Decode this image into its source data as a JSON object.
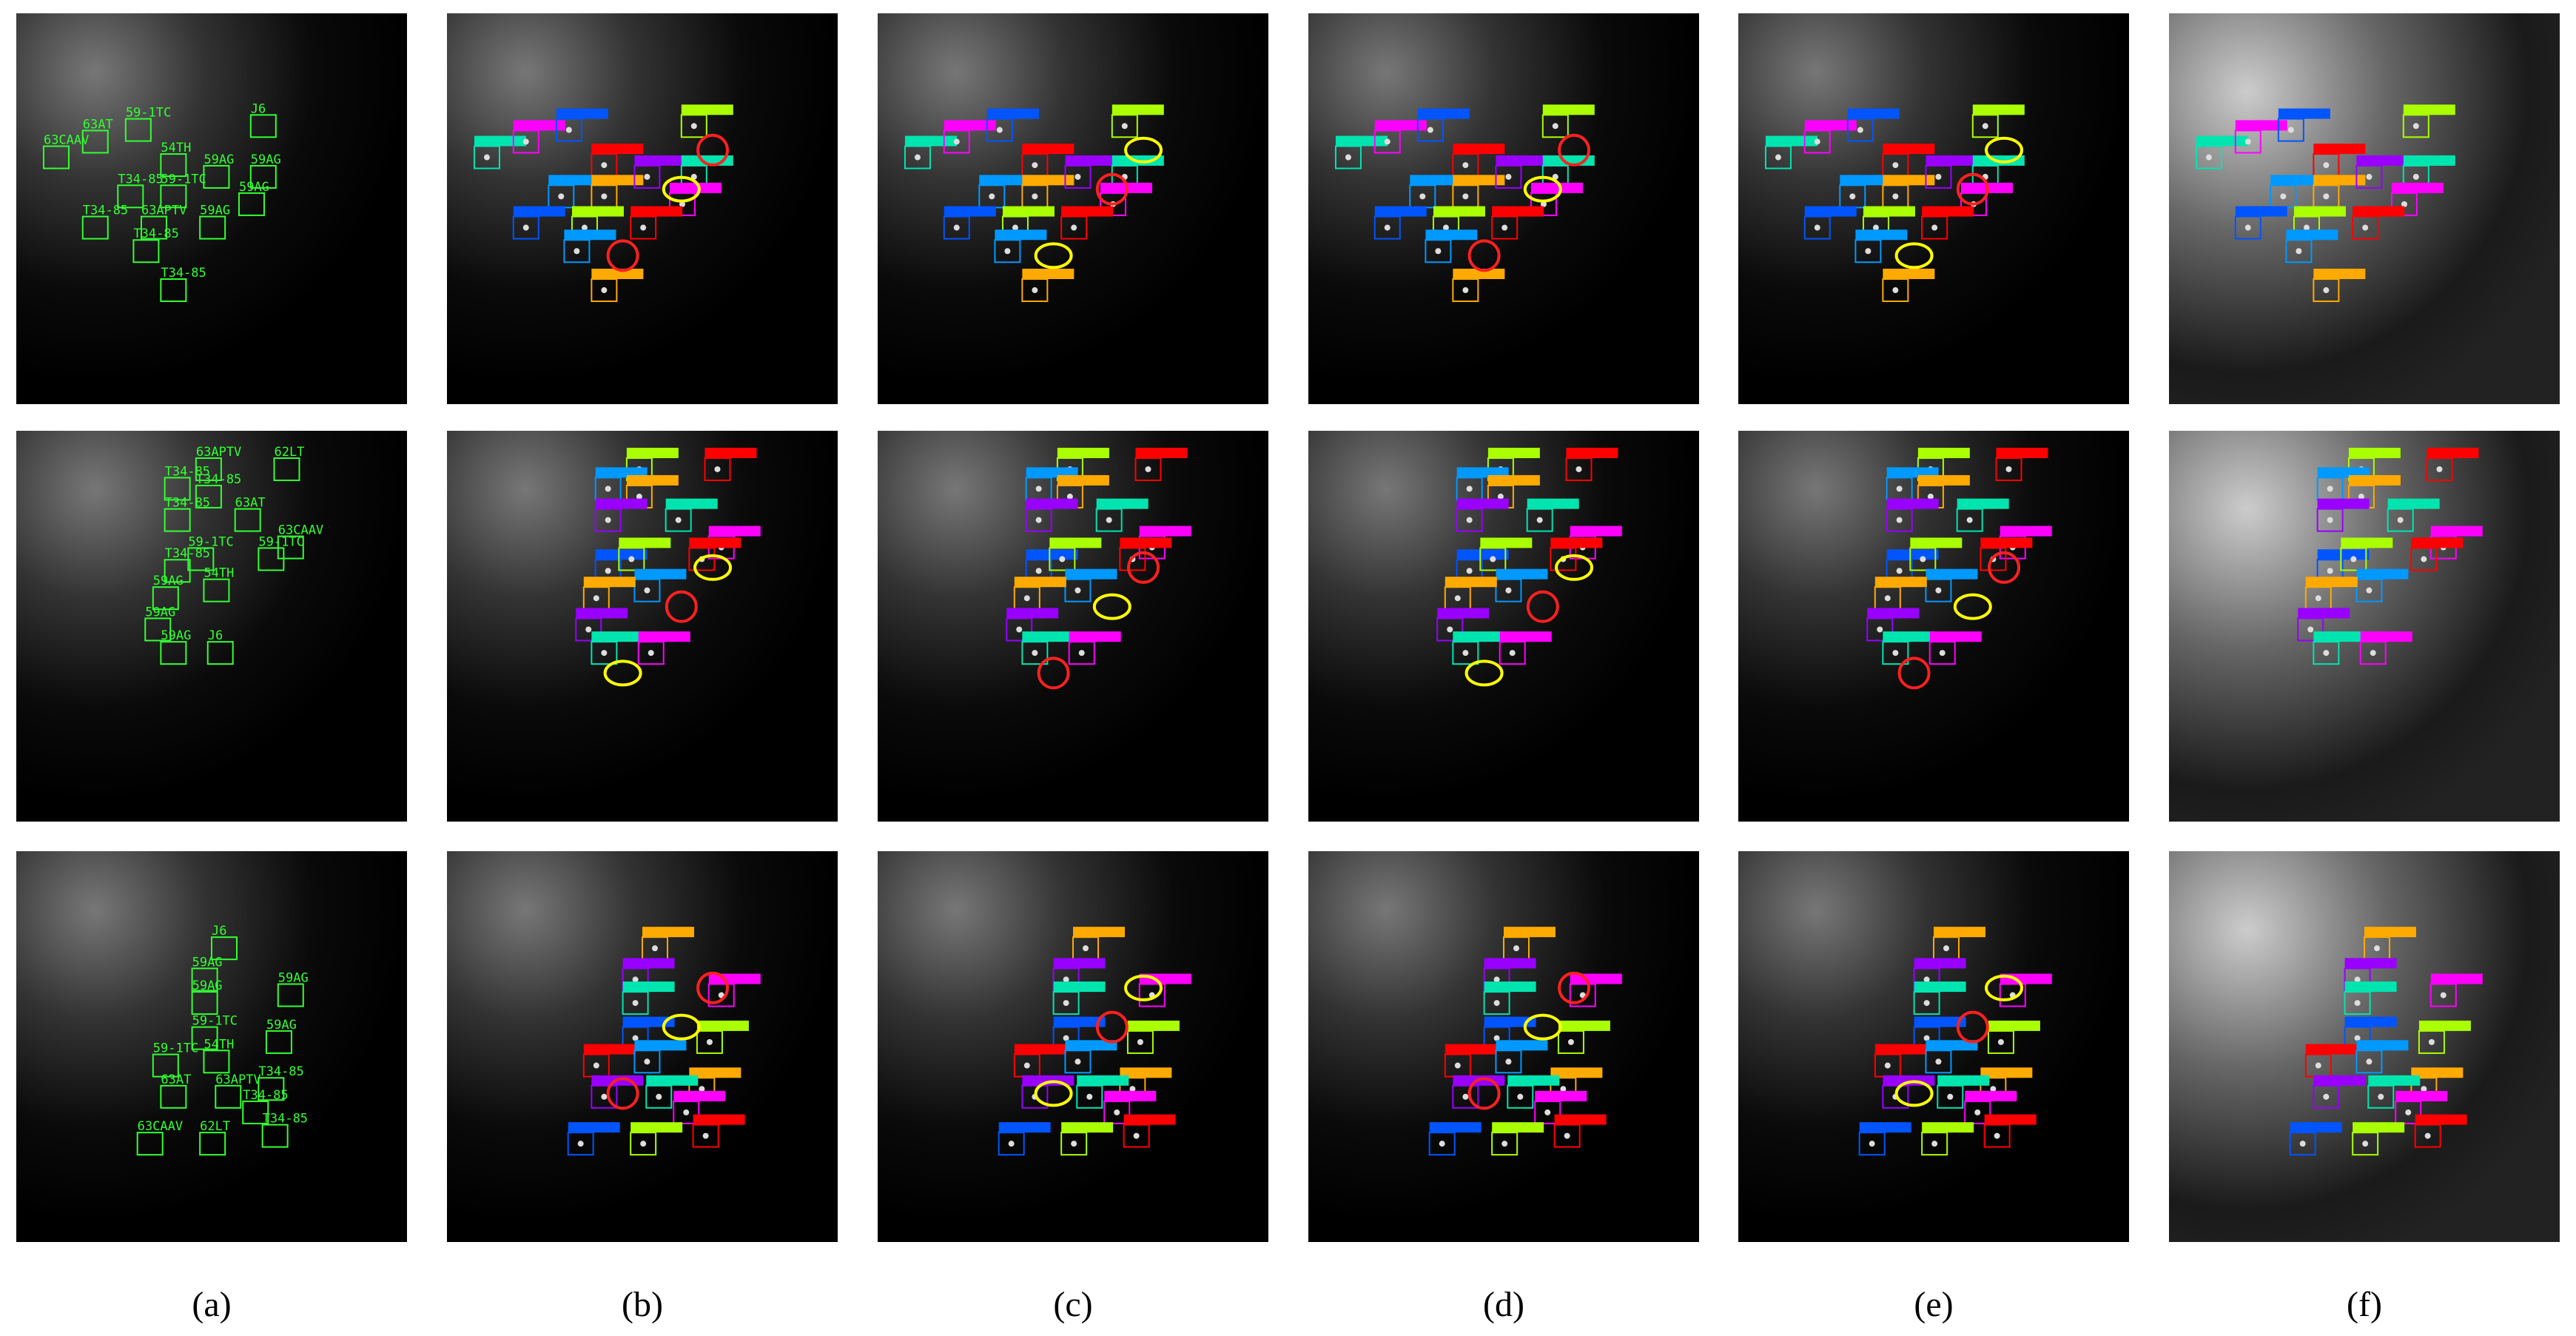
{
  "figure": {
    "captions": [
      "(a)",
      "(b)",
      "(c)",
      "(d)",
      "(e)",
      "(f)"
    ],
    "ground_truth": [
      [
        "63CAAV",
        "63AT",
        "59-1TC",
        "J6",
        "54TH",
        "T34-85",
        "59-1TC",
        "59AG",
        "59AG",
        "59AG",
        "T34-85",
        "63APTV",
        "59AG",
        "T34-85",
        "T34-85"
      ],
      [
        "63APTV",
        "62LT",
        "T34-85",
        "T34-85",
        "T34-85",
        "63AT",
        "63CAAV",
        "T34-85",
        "59-1TC",
        "59-1TC",
        "54TH",
        "59AG",
        "59AG",
        "59AG",
        "J6"
      ],
      [
        "J6",
        "59AG",
        "59AG",
        "59AG",
        "59-1TC",
        "59AG",
        "59-1TC",
        "54TH",
        "T34-85",
        "63AT",
        "63APTV",
        "T34-85",
        "63CAAV",
        "62LT",
        "T34-85"
      ]
    ]
  }
}
